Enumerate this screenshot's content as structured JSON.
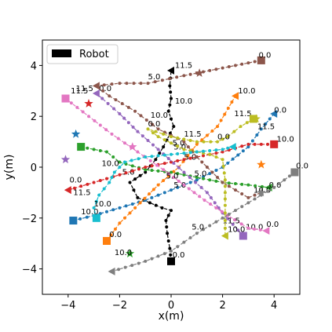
{
  "chart_data": {
    "type": "scatter",
    "title": "",
    "xlabel": "x(m)",
    "ylabel": "y(m)",
    "xlim": [
      -5,
      5
    ],
    "ylim": [
      -5,
      5
    ],
    "xticks": [
      -4,
      -2,
      0,
      2,
      4
    ],
    "yticks": [
      -4,
      -2,
      0,
      2,
      4
    ],
    "grid": false,
    "legend": {
      "placement": "top-left",
      "entries": [
        {
          "label": "Robot",
          "color": "#000000"
        }
      ]
    },
    "series": [
      {
        "color": "#000000",
        "marker": "circle",
        "start": [
          0,
          -3.7
        ],
        "end": [
          0,
          3.8
        ],
        "points": [
          [
            0,
            -3.7
          ],
          [
            -0.05,
            -3.2
          ],
          [
            -0.15,
            -2.6
          ],
          [
            -0.2,
            -2.1
          ],
          [
            0,
            -1.7
          ],
          [
            -0.35,
            -1.6
          ],
          [
            -1.3,
            -1.2
          ],
          [
            -1.6,
            -0.6
          ],
          [
            -1.0,
            -0.2
          ],
          [
            -0.6,
            0.3
          ],
          [
            -0.3,
            0.8
          ],
          [
            0.1,
            1.6
          ],
          [
            -0.1,
            2.2
          ],
          [
            0,
            2.7
          ],
          [
            -0.05,
            3.2
          ],
          [
            0,
            3.8
          ]
        ],
        "labels": [
          {
            "text": "0.0",
            "x": 0.05,
            "y": -3.55
          },
          {
            "text": "5.0",
            "x": -1.9,
            "y": -0.3
          },
          {
            "text": "10.0",
            "x": 0.15,
            "y": 2.5
          },
          {
            "text": "11.5",
            "x": 0.15,
            "y": 3.9
          }
        ]
      },
      {
        "color": "#1f77b4",
        "marker": "circle",
        "start": [
          -3.8,
          -2.1
        ],
        "end": [
          4.0,
          2.1
        ],
        "points": [
          [
            -3.8,
            -2.1
          ],
          [
            -3.0,
            -1.9
          ],
          [
            -2.0,
            -1.6
          ],
          [
            -1.0,
            -1.3
          ],
          [
            0,
            -0.9
          ],
          [
            1.0,
            -0.5
          ],
          [
            2.0,
            0
          ],
          [
            3.0,
            0.8
          ],
          [
            3.5,
            1.5
          ],
          [
            4.0,
            2.1
          ]
        ],
        "labels": [
          {
            "text": "10.0",
            "x": -3.5,
            "y": -1.85
          },
          {
            "text": "5.0",
            "x": 0.1,
            "y": -0.8
          },
          {
            "text": "11.5",
            "x": 3.35,
            "y": 1.5
          },
          {
            "text": "0.0",
            "x": 4.0,
            "y": 2.15
          }
        ],
        "goal": [
          -3.7,
          1.3
        ]
      },
      {
        "color": "#ff7f0e",
        "marker": "circle",
        "start": [
          -2.5,
          -2.9
        ],
        "end": [
          2.5,
          2.8
        ],
        "points": [
          [
            -2.5,
            -2.9
          ],
          [
            -2.0,
            -2.2
          ],
          [
            -1.2,
            -1.4
          ],
          [
            -0.5,
            -0.7
          ],
          [
            0.3,
            0
          ],
          [
            1.0,
            0.9
          ],
          [
            1.8,
            1.6
          ],
          [
            2.5,
            2.8
          ]
        ],
        "labels": [
          {
            "text": "0.0",
            "x": -2.4,
            "y": -2.75
          },
          {
            "text": "5.0",
            "x": 0.05,
            "y": 0.85
          },
          {
            "text": "11.5",
            "x": 2.45,
            "y": 2.0
          },
          {
            "text": "10.0",
            "x": 2.6,
            "y": 2.9
          }
        ],
        "goal": [
          3.5,
          0.1
        ]
      },
      {
        "color": "#2ca02c",
        "marker": "circle",
        "start": [
          -3.5,
          0.8
        ],
        "end": [
          3.8,
          -0.8
        ],
        "points": [
          [
            -3.5,
            0.8
          ],
          [
            -2.5,
            0.6
          ],
          [
            -2.0,
            0.2
          ],
          [
            -1.0,
            -0.1
          ],
          [
            0,
            -0.2
          ],
          [
            1.0,
            -0.4
          ],
          [
            2.0,
            -0.6
          ],
          [
            3.0,
            -0.7
          ],
          [
            3.8,
            -0.8
          ]
        ],
        "labels": [
          {
            "text": "10.0",
            "x": -2.7,
            "y": 0.05
          },
          {
            "text": "5.0",
            "x": 0.5,
            "y": 0.3
          },
          {
            "text": "0.0",
            "x": 3.8,
            "y": -0.8
          }
        ],
        "goal": [
          -1.6,
          -3.4
        ]
      },
      {
        "color": "#d62728",
        "marker": "circle",
        "start": [
          4.0,
          0.9
        ],
        "end": [
          -4.0,
          -0.9
        ],
        "points": [
          [
            4.0,
            0.9
          ],
          [
            3.0,
            0.9
          ],
          [
            2.0,
            0.6
          ],
          [
            1.0,
            0.4
          ],
          [
            0,
            0.2
          ],
          [
            -1.0,
            0
          ],
          [
            -2.0,
            -0.3
          ],
          [
            -3.0,
            -0.6
          ],
          [
            -4.0,
            -0.9
          ]
        ],
        "labels": [
          {
            "text": "10.0",
            "x": 4.1,
            "y": 1.0
          },
          {
            "text": "5.0",
            "x": 0.1,
            "y": 0.7
          },
          {
            "text": "0.0",
            "x": -3.95,
            "y": -0.6
          }
        ],
        "goal": [
          -3.2,
          2.5
        ]
      },
      {
        "color": "#9467bd",
        "marker": "circle",
        "start": [
          2.8,
          -2.7
        ],
        "end": [
          -2.9,
          2.9
        ],
        "points": [
          [
            2.8,
            -2.7
          ],
          [
            2.0,
            -1.8
          ],
          [
            1.4,
            -1.0
          ],
          [
            0.5,
            -0.2
          ],
          [
            -0.5,
            0.7
          ],
          [
            -1.3,
            1.4
          ],
          [
            -2.0,
            2.1
          ],
          [
            -2.9,
            2.9
          ]
        ],
        "labels": [
          {
            "text": "10.0",
            "x": 2.9,
            "y": -2.45
          },
          {
            "text": "5.0",
            "x": 0.9,
            "y": -0.35
          },
          {
            "text": "0.0",
            "x": -2.8,
            "y": 3.0
          }
        ],
        "goal": [
          -4.1,
          0.3
        ]
      },
      {
        "color": "#8c564b",
        "marker": "circle",
        "start": [
          3.5,
          4.2
        ],
        "end": [
          -2.9,
          3.2
        ],
        "points": [
          [
            3.5,
            4.2
          ],
          [
            2.5,
            4.0
          ],
          [
            1.5,
            3.8
          ],
          [
            0.5,
            3.6
          ],
          [
            -0.9,
            3.3
          ],
          [
            -2.0,
            3.3
          ],
          [
            -2.9,
            3.2
          ],
          [
            -2.4,
            2.8
          ],
          [
            -1.4,
            2.2
          ],
          [
            -0.5,
            1.5
          ],
          [
            0.5,
            1.0
          ],
          [
            1.0,
            0.4
          ],
          [
            2.0,
            -0.6
          ],
          [
            3.0,
            -1.2
          ],
          [
            3.5,
            -1.0
          ]
        ],
        "labels": [
          {
            "text": "0.0",
            "x": 3.4,
            "y": 4.3
          },
          {
            "text": "5.0",
            "x": -0.9,
            "y": 3.45
          },
          {
            "text": "11.5",
            "x": -3.7,
            "y": 3.0
          },
          {
            "text": "10.0",
            "x": 3.2,
            "y": -1.0
          }
        ],
        "goal": [
          1.1,
          3.7
        ]
      },
      {
        "color": "#e377c2",
        "marker": "circle",
        "start": [
          -4.1,
          2.7
        ],
        "end": [
          3.7,
          -2.5
        ],
        "points": [
          [
            -4.1,
            2.7
          ],
          [
            -3.2,
            2.0
          ],
          [
            -2.3,
            1.3
          ],
          [
            -1.3,
            0.6
          ],
          [
            -0.3,
            -0.1
          ],
          [
            0.5,
            -0.7
          ],
          [
            1.3,
            -1.3
          ],
          [
            2.2,
            -1.9
          ],
          [
            3.0,
            -2.4
          ],
          [
            3.7,
            -2.5
          ]
        ],
        "labels": [
          {
            "text": "11.5",
            "x": -3.9,
            "y": 2.9
          },
          {
            "text": "5.0",
            "x": -0.2,
            "y": -0.45
          },
          {
            "text": "11.5",
            "x": 2.0,
            "y": -2.2
          },
          {
            "text": "0.0",
            "x": 3.7,
            "y": -2.35
          }
        ],
        "goal": [
          -1.5,
          0.8
        ]
      },
      {
        "color": "#7f7f7f",
        "marker": "circle",
        "start": [
          4.8,
          -0.2
        ],
        "end": [
          -2.3,
          -4.1
        ],
        "points": [
          [
            4.8,
            -0.2
          ],
          [
            4.0,
            -0.8
          ],
          [
            3.0,
            -1.4
          ],
          [
            2.0,
            -2.0
          ],
          [
            1.0,
            -2.6
          ],
          [
            0,
            -3.3
          ],
          [
            -1.0,
            -3.7
          ],
          [
            -2.3,
            -4.1
          ]
        ],
        "labels": [
          {
            "text": "0.0",
            "x": 4.85,
            "y": -0.05
          },
          {
            "text": "5.0",
            "x": 0.8,
            "y": -2.45
          },
          {
            "text": "10.0",
            "x": -2.2,
            "y": -3.45
          }
        ],
        "goal": [
          3.5,
          -1.0
        ]
      },
      {
        "color": "#bcbd22",
        "marker": "circle",
        "start": [
          3.2,
          1.9
        ],
        "end": [
          2.1,
          -2.7
        ],
        "points": [
          [
            3.2,
            1.9
          ],
          [
            2.7,
            1.6
          ],
          [
            2.2,
            1.2
          ],
          [
            1.8,
            1.0
          ],
          [
            1.0,
            1.0
          ],
          [
            0,
            1.2
          ],
          [
            -0.9,
            1.5
          ],
          [
            -0.5,
            1.2
          ],
          [
            0.5,
            0.7
          ],
          [
            1.5,
            0.5
          ],
          [
            2.0,
            0.3
          ],
          [
            2.1,
            -0.5
          ],
          [
            2.1,
            -1.5
          ],
          [
            2.1,
            -2.7
          ]
        ],
        "labels": [
          {
            "text": "11.5",
            "x": 0.5,
            "y": 1.2
          },
          {
            "text": "0.0",
            "x": 1.8,
            "y": 1.1
          },
          {
            "text": "10.0",
            "x": -0.8,
            "y": 1.95
          },
          {
            "text": "10.0",
            "x": 2.2,
            "y": -2.55
          }
        ],
        "goal": [
          3.3,
          1.9
        ]
      },
      {
        "color": "#17becf",
        "marker": "circle",
        "start": [
          -2.9,
          -2.0
        ],
        "end": [
          2.4,
          0.8
        ],
        "points": [
          [
            -2.9,
            -2.0
          ],
          [
            -3.0,
            -1.6
          ],
          [
            -2.8,
            -1.1
          ],
          [
            -2.4,
            -0.6
          ],
          [
            -2.2,
            -0.2
          ],
          [
            -1.8,
            0.2
          ],
          [
            -1.0,
            0.4
          ],
          [
            0,
            0.5
          ],
          [
            1.0,
            0.6
          ],
          [
            2.0,
            0.7
          ],
          [
            2.4,
            0.8
          ]
        ],
        "labels": [
          {
            "text": "11.5",
            "x": -3.8,
            "y": -1.1
          },
          {
            "text": "10.0",
            "x": -3.0,
            "y": -1.55
          },
          {
            "text": "0.0",
            "x": -0.9,
            "y": 1.6
          }
        ]
      }
    ]
  }
}
